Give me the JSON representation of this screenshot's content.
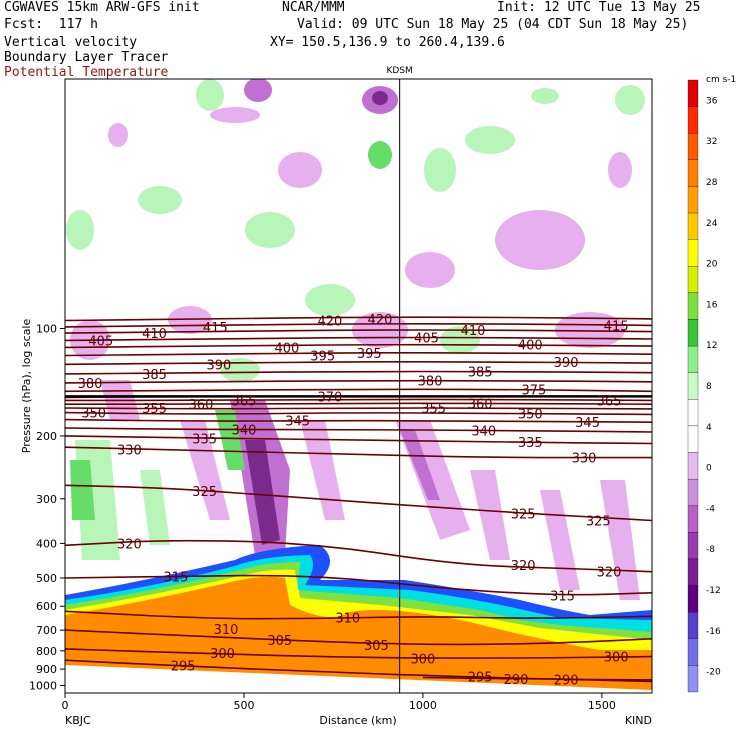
{
  "header": {
    "title_left": "CGWAVES 15km ARW-GFS init",
    "fcst": "Fcst:  117 h",
    "field1": "Vertical velocity",
    "field2": "Boundary Layer Tracer",
    "field3": "Potential Temperature",
    "center": "NCAR/MMM",
    "init": "Init: 12 UTC Tue 13 May 25",
    "valid": "Valid: 09 UTC Sun 18 May 25 (04 CDT Sun 18 May 25)",
    "xy": "XY= 150.5,136.9 to 260.4,139.6",
    "station_marker": "KDSM"
  },
  "colors": {
    "theta_contour": "#6b0000",
    "tracer_orange": "#ff8c00",
    "tracer_yellow": "#ffff00",
    "tracer_green": "#7fe040",
    "tracer_cyan": "#00e0e0",
    "tracer_blue": "#1e50ff",
    "w_pos_light": "#b8f5b8",
    "w_pos_mid": "#66dd66",
    "w_neg_light": "#e6b0ee",
    "w_neg_mid": "#c070d0",
    "w_neg_dark": "#7a2a8a"
  },
  "chart_data": {
    "type": "cross-section",
    "xlabel": "Distance (km)",
    "ylabel": "Pressure (hPa), log scale",
    "xlim": [
      0,
      1640
    ],
    "ylim": [
      1050,
      20
    ],
    "log_y": true,
    "x_ticks": [
      0,
      500,
      1000,
      1500
    ],
    "x_tick_labels": [
      "0",
      "500",
      "1000",
      "1500"
    ],
    "y_ticks": [
      100,
      200,
      300,
      400,
      500,
      600,
      700,
      800,
      900,
      1000
    ],
    "y_tick_labels": [
      "100",
      "200",
      "300",
      "400",
      "500",
      "600",
      "700",
      "800",
      "900",
      "1000"
    ],
    "left_endpoint": "KBJC",
    "right_endpoint": "KIND",
    "station_line_x": 935,
    "colorbar": {
      "units": "cm s-1",
      "levels": [
        36,
        32,
        28,
        24,
        20,
        16,
        12,
        8,
        4,
        0,
        -4,
        -8,
        -12,
        -16,
        -20
      ],
      "labels": [
        "36",
        "32",
        "28",
        "24",
        "20",
        "16",
        "12",
        "8",
        "4",
        "0",
        "-4",
        "-8",
        "-12",
        "-16",
        "-20"
      ],
      "colors": [
        "#e00000",
        "#ff2a00",
        "#ff5a00",
        "#ff8000",
        "#ffa000",
        "#ffc800",
        "#ffff00",
        "#d2f000",
        "#7ce040",
        "#39c43a",
        "#8cef8c",
        "#c8fac8",
        "#ffffff",
        "#ffffff",
        "#e8b8f0",
        "#d090e0",
        "#b860c8",
        "#9a3cb0",
        "#7a1e94",
        "#5a0080",
        "#5a40c8",
        "#7070e8",
        "#9090f0"
      ]
    },
    "theta_contours": [
      {
        "level": 295,
        "label": "295",
        "pts": [
          [
            0,
            850
          ],
          [
            300,
            880
          ],
          [
            700,
            915
          ],
          [
            1100,
            945
          ],
          [
            1640,
            975
          ]
        ]
      },
      {
        "level": 290,
        "label": "290",
        "pts": [
          [
            1000,
            950
          ],
          [
            1300,
            960
          ],
          [
            1640,
            965
          ]
        ]
      },
      {
        "level": 300,
        "label": "300",
        "pts": [
          [
            0,
            790
          ],
          [
            400,
            815
          ],
          [
            800,
            835
          ],
          [
            1200,
            840
          ],
          [
            1640,
            830
          ]
        ]
      },
      {
        "level": 305,
        "label": "305",
        "pts": [
          [
            0,
            700
          ],
          [
            400,
            730
          ],
          [
            800,
            760
          ],
          [
            1100,
            770
          ],
          [
            1400,
            760
          ],
          [
            1640,
            740
          ]
        ]
      },
      {
        "level": 310,
        "label": "310",
        "pts": [
          [
            0,
            620
          ],
          [
            400,
            650
          ],
          [
            700,
            650
          ],
          [
            1000,
            640
          ],
          [
            1300,
            650
          ],
          [
            1640,
            640
          ]
        ]
      },
      {
        "level": 315,
        "label": "315",
        "pts": [
          [
            0,
            500
          ],
          [
            300,
            495
          ],
          [
            700,
            490
          ],
          [
            1100,
            540
          ],
          [
            1400,
            560
          ],
          [
            1640,
            550
          ]
        ]
      },
      {
        "level": 320,
        "label": "320",
        "pts": [
          [
            0,
            405
          ],
          [
            300,
            390
          ],
          [
            700,
            400
          ],
          [
            1100,
            460
          ],
          [
            1400,
            470
          ],
          [
            1640,
            480
          ]
        ]
      },
      {
        "level": 325,
        "label": "325",
        "pts": [
          [
            0,
            275
          ],
          [
            300,
            280
          ],
          [
            700,
            300
          ],
          [
            1000,
            315
          ],
          [
            1300,
            330
          ],
          [
            1640,
            345
          ]
        ]
      },
      {
        "level": 330,
        "label": "330",
        "pts": [
          [
            0,
            215
          ],
          [
            400,
            220
          ],
          [
            800,
            225
          ],
          [
            1200,
            230
          ],
          [
            1640,
            230
          ]
        ]
      },
      {
        "level": 335,
        "label": "335",
        "pts": [
          [
            0,
            200
          ],
          [
            400,
            203
          ],
          [
            800,
            205
          ],
          [
            1200,
            208
          ],
          [
            1640,
            210
          ]
        ]
      },
      {
        "level": 340,
        "label": "340",
        "pts": [
          [
            0,
            190
          ],
          [
            400,
            192
          ],
          [
            800,
            192
          ],
          [
            1200,
            193
          ],
          [
            1640,
            195
          ]
        ]
      },
      {
        "level": 345,
        "label": "345",
        "pts": [
          [
            0,
            180
          ],
          [
            400,
            182
          ],
          [
            800,
            181
          ],
          [
            1200,
            182
          ],
          [
            1640,
            183
          ]
        ]
      },
      {
        "level": 350,
        "label": "350",
        "pts": [
          [
            0,
            172
          ],
          [
            400,
            174
          ],
          [
            800,
            172
          ],
          [
            1200,
            173
          ],
          [
            1640,
            174
          ]
        ]
      },
      {
        "level": 355,
        "label": "355",
        "pts": [
          [
            0,
            167
          ],
          [
            400,
            168
          ],
          [
            800,
            167
          ],
          [
            1200,
            167
          ],
          [
            1640,
            168
          ]
        ]
      },
      {
        "level": 360,
        "label": "360",
        "pts": [
          [
            0,
            163
          ],
          [
            400,
            163
          ],
          [
            800,
            162
          ],
          [
            1200,
            162
          ],
          [
            1640,
            163
          ]
        ]
      },
      {
        "level": 365,
        "label": "365",
        "pts": [
          [
            0,
            159
          ],
          [
            400,
            159
          ],
          [
            800,
            158
          ],
          [
            1200,
            158
          ],
          [
            1640,
            159
          ]
        ]
      },
      {
        "level": 370,
        "label": "370",
        "pts": [
          [
            0,
            156
          ],
          [
            400,
            155
          ],
          [
            800,
            155
          ],
          [
            1200,
            155
          ],
          [
            1640,
            155
          ]
        ]
      },
      {
        "level": 375,
        "label": "375",
        "pts": [
          [
            0,
            150
          ],
          [
            400,
            149
          ],
          [
            800,
            148
          ],
          [
            1200,
            148
          ],
          [
            1640,
            150
          ]
        ]
      },
      {
        "level": 380,
        "label": "380",
        "pts": [
          [
            0,
            142
          ],
          [
            400,
            141
          ],
          [
            800,
            140
          ],
          [
            1200,
            140
          ],
          [
            1640,
            141
          ]
        ]
      },
      {
        "level": 385,
        "label": "385",
        "pts": [
          [
            0,
            134
          ],
          [
            400,
            133
          ],
          [
            800,
            132
          ],
          [
            1200,
            132
          ],
          [
            1640,
            133
          ]
        ]
      },
      {
        "level": 390,
        "label": "390",
        "pts": [
          [
            0,
            126
          ],
          [
            400,
            125
          ],
          [
            800,
            124
          ],
          [
            1200,
            124
          ],
          [
            1640,
            125
          ]
        ]
      },
      {
        "level": 395,
        "label": "395",
        "pts": [
          [
            0,
            119
          ],
          [
            400,
            118
          ],
          [
            800,
            117
          ],
          [
            1200,
            117
          ],
          [
            1640,
            118
          ]
        ]
      },
      {
        "level": 400,
        "label": "400",
        "pts": [
          [
            0,
            113
          ],
          [
            400,
            112
          ],
          [
            800,
            111
          ],
          [
            1200,
            111
          ],
          [
            1640,
            112
          ]
        ]
      },
      {
        "level": 405,
        "label": "405",
        "pts": [
          [
            0,
            108
          ],
          [
            400,
            107
          ],
          [
            800,
            106
          ],
          [
            1200,
            106
          ],
          [
            1640,
            107
          ]
        ]
      },
      {
        "level": 410,
        "label": "410",
        "pts": [
          [
            0,
            103
          ],
          [
            400,
            102
          ],
          [
            800,
            101
          ],
          [
            1200,
            101
          ],
          [
            1640,
            102
          ]
        ]
      },
      {
        "level": 415,
        "label": "415",
        "pts": [
          [
            0,
            99
          ],
          [
            400,
            98
          ],
          [
            800,
            97
          ],
          [
            1200,
            97
          ],
          [
            1640,
            98
          ]
        ]
      },
      {
        "level": 420,
        "label": "420",
        "pts": [
          [
            0,
            95
          ],
          [
            400,
            94
          ],
          [
            800,
            93
          ],
          [
            1200,
            93
          ],
          [
            1640,
            94
          ]
        ]
      }
    ],
    "theta_labels": [
      {
        "text": "295",
        "x": 330,
        "p": 880
      },
      {
        "text": "300",
        "x": 440,
        "p": 810
      },
      {
        "text": "305",
        "x": 600,
        "p": 745
      },
      {
        "text": "310",
        "x": 450,
        "p": 695
      },
      {
        "text": "315",
        "x": 310,
        "p": 495
      },
      {
        "text": "320",
        "x": 180,
        "p": 400
      },
      {
        "text": "325",
        "x": 390,
        "p": 285
      },
      {
        "text": "330",
        "x": 180,
        "p": 218
      },
      {
        "text": "335",
        "x": 390,
        "p": 203
      },
      {
        "text": "340",
        "x": 500,
        "p": 192
      },
      {
        "text": "345",
        "x": 650,
        "p": 181
      },
      {
        "text": "350",
        "x": 80,
        "p": 172
      },
      {
        "text": "355",
        "x": 250,
        "p": 167
      },
      {
        "text": "360",
        "x": 380,
        "p": 163
      },
      {
        "text": "365",
        "x": 500,
        "p": 159
      },
      {
        "text": "370",
        "x": 740,
        "p": 155
      },
      {
        "text": "380",
        "x": 70,
        "p": 142
      },
      {
        "text": "385",
        "x": 250,
        "p": 134
      },
      {
        "text": "390",
        "x": 430,
        "p": 126
      },
      {
        "text": "395",
        "x": 720,
        "p": 119
      },
      {
        "text": "400",
        "x": 620,
        "p": 113
      },
      {
        "text": "405",
        "x": 100,
        "p": 108
      },
      {
        "text": "410",
        "x": 250,
        "p": 103
      },
      {
        "text": "415",
        "x": 420,
        "p": 99
      },
      {
        "text": "420",
        "x": 740,
        "p": 95
      },
      {
        "text": "420",
        "x": 880,
        "p": 94
      },
      {
        "text": "395",
        "x": 850,
        "p": 117
      },
      {
        "text": "405",
        "x": 1010,
        "p": 106
      },
      {
        "text": "410",
        "x": 1140,
        "p": 101
      },
      {
        "text": "400",
        "x": 1300,
        "p": 111
      },
      {
        "text": "415",
        "x": 1540,
        "p": 98
      },
      {
        "text": "390",
        "x": 1400,
        "p": 124
      },
      {
        "text": "380",
        "x": 1020,
        "p": 140
      },
      {
        "text": "385",
        "x": 1160,
        "p": 132
      },
      {
        "text": "375",
        "x": 1310,
        "p": 148
      },
      {
        "text": "365",
        "x": 1520,
        "p": 159
      },
      {
        "text": "355",
        "x": 1030,
        "p": 167
      },
      {
        "text": "360",
        "x": 1160,
        "p": 162
      },
      {
        "text": "350",
        "x": 1300,
        "p": 173
      },
      {
        "text": "345",
        "x": 1460,
        "p": 183
      },
      {
        "text": "340",
        "x": 1170,
        "p": 193
      },
      {
        "text": "335",
        "x": 1300,
        "p": 208
      },
      {
        "text": "330",
        "x": 1450,
        "p": 230
      },
      {
        "text": "325",
        "x": 1280,
        "p": 330
      },
      {
        "text": "325",
        "x": 1490,
        "p": 345
      },
      {
        "text": "320",
        "x": 1280,
        "p": 460
      },
      {
        "text": "320",
        "x": 1520,
        "p": 480
      },
      {
        "text": "315",
        "x": 1390,
        "p": 560
      },
      {
        "text": "310",
        "x": 790,
        "p": 645
      },
      {
        "text": "305",
        "x": 870,
        "p": 770
      },
      {
        "text": "300",
        "x": 1000,
        "p": 840
      },
      {
        "text": "300",
        "x": 1540,
        "p": 830
      },
      {
        "text": "295",
        "x": 1160,
        "p": 945
      },
      {
        "text": "290",
        "x": 1260,
        "p": 960
      },
      {
        "text": "290",
        "x": 1400,
        "p": 962
      }
    ]
  }
}
